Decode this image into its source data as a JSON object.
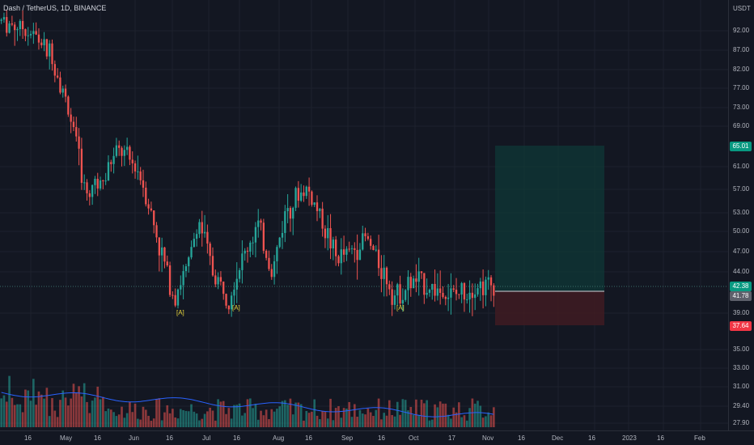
{
  "header": {
    "symbol_label": "Dash / TetherUS, 1D, BINANCE"
  },
  "price_axis": {
    "unit": "USDT",
    "ticks": [
      "92.00",
      "87.00",
      "82.00",
      "77.00",
      "73.00",
      "69.00",
      "61.00",
      "57.00",
      "53.00",
      "50.00",
      "47.00",
      "44.00",
      "39.00",
      "35.00",
      "33.00",
      "31.00",
      "29.40",
      "27.90"
    ],
    "tags": [
      {
        "label": "65.01",
        "color": "#089981"
      },
      {
        "label": "42.38",
        "color": "#089981"
      },
      {
        "label": "41.78",
        "color": "#5d606b"
      },
      {
        "label": "37.64",
        "color": "#f23645"
      }
    ]
  },
  "time_axis": {
    "ticks": [
      "16",
      "May",
      "16",
      "Jun",
      "16",
      "Jul",
      "16",
      "Aug",
      "16",
      "Sep",
      "16",
      "Oct",
      "17",
      "Nov",
      "16",
      "Dec",
      "16",
      "2023",
      "16",
      "Feb"
    ]
  },
  "annotations": [
    "[A]",
    "[A]",
    "[A]"
  ],
  "colors": {
    "up": "#26a69a",
    "down": "#ef5350",
    "background": "#131722",
    "grid": "#1e222d",
    "volume_ma": "#2962ff",
    "profit_zone": "#0e3a37",
    "loss_zone": "#3f1b22"
  },
  "chart_data": {
    "type": "candlestick",
    "symbol": "Dash / TetherUS",
    "interval": "1D",
    "exchange": "BINANCE",
    "y_unit": "USDT",
    "price_range": [
      27.5,
      100
    ],
    "trade_setup": {
      "entry": 41.78,
      "target": 65.01,
      "stop": 37.64,
      "last_price": 42.38
    },
    "waypoints": [
      {
        "x": 0,
        "price": 95
      },
      {
        "x": 0.05,
        "price": 93
      },
      {
        "x": 0.1,
        "price": 86
      },
      {
        "x": 0.14,
        "price": 71
      },
      {
        "x": 0.17,
        "price": 56
      },
      {
        "x": 0.2,
        "price": 59
      },
      {
        "x": 0.24,
        "price": 64
      },
      {
        "x": 0.28,
        "price": 60
      },
      {
        "x": 0.32,
        "price": 48
      },
      {
        "x": 0.35,
        "price": 41
      },
      {
        "x": 0.38,
        "price": 45
      },
      {
        "x": 0.4,
        "price": 52
      },
      {
        "x": 0.43,
        "price": 44
      },
      {
        "x": 0.46,
        "price": 41
      },
      {
        "x": 0.49,
        "price": 46
      },
      {
        "x": 0.52,
        "price": 51
      },
      {
        "x": 0.55,
        "price": 44
      },
      {
        "x": 0.58,
        "price": 54
      },
      {
        "x": 0.62,
        "price": 57
      },
      {
        "x": 0.65,
        "price": 52
      },
      {
        "x": 0.68,
        "price": 46
      },
      {
        "x": 0.71,
        "price": 47
      },
      {
        "x": 0.74,
        "price": 49
      },
      {
        "x": 0.77,
        "price": 45
      },
      {
        "x": 0.8,
        "price": 41
      },
      {
        "x": 0.84,
        "price": 43
      },
      {
        "x": 0.88,
        "price": 42
      },
      {
        "x": 0.92,
        "price": 41
      },
      {
        "x": 0.96,
        "price": 42.5
      },
      {
        "x": 1,
        "price": 42.38
      }
    ],
    "candle_count": 185
  }
}
